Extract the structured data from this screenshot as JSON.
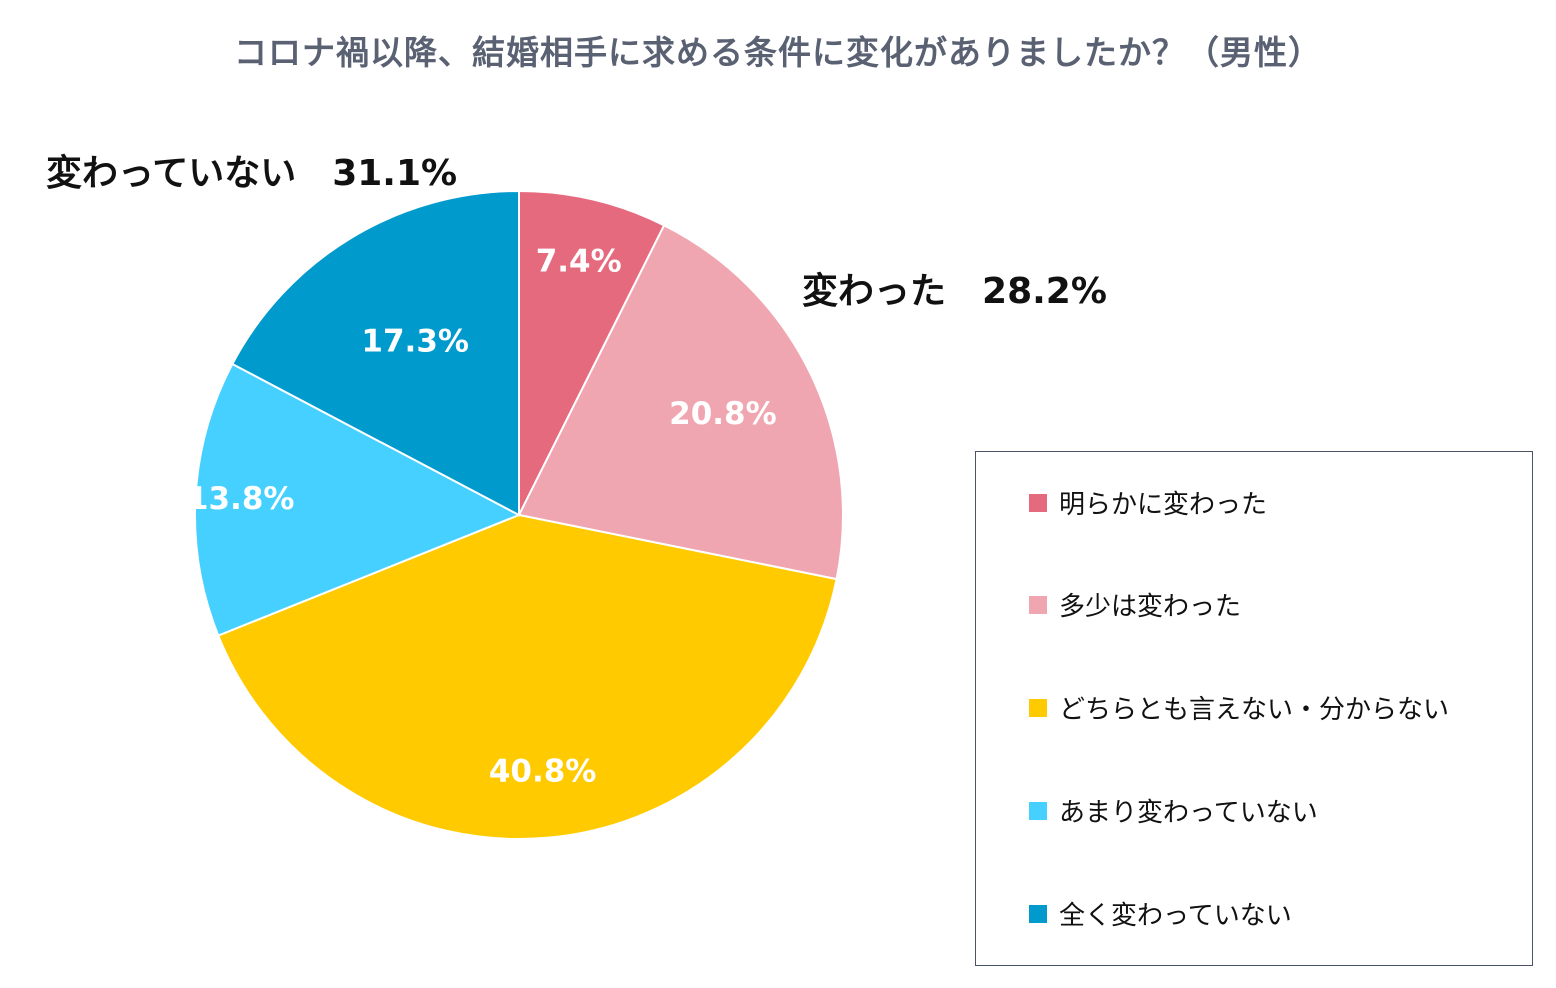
{
  "chart_data": {
    "type": "pie",
    "title": "コロナ禍以降、結婚相手に求める条件に変化がありましたか？（男性）",
    "start_angle_deg": 0,
    "direction": "clockwise",
    "slices": [
      {
        "name": "明らかに変わった",
        "value": 7.4,
        "label": "7.4%",
        "color": "#e66a7e"
      },
      {
        "name": "多少は変わった",
        "value": 20.8,
        "label": "20.8%",
        "color": "#f0a6b1"
      },
      {
        "name": "どちらとも言えない・分からない",
        "value": 40.8,
        "label": "40.8%",
        "color": "#ffca00"
      },
      {
        "name": "あまり変わっていない",
        "value": 13.8,
        "label": "13.8%",
        "color": "#46d0ff"
      },
      {
        "name": "全く変わっていない",
        "value": 17.3,
        "label": "17.3%",
        "color": "#009acd"
      }
    ],
    "group_labels": [
      {
        "name": "変わっていない",
        "pct": "31.1%"
      },
      {
        "name": "変わった",
        "pct": "28.2%"
      }
    ],
    "legend_position": "right"
  }
}
